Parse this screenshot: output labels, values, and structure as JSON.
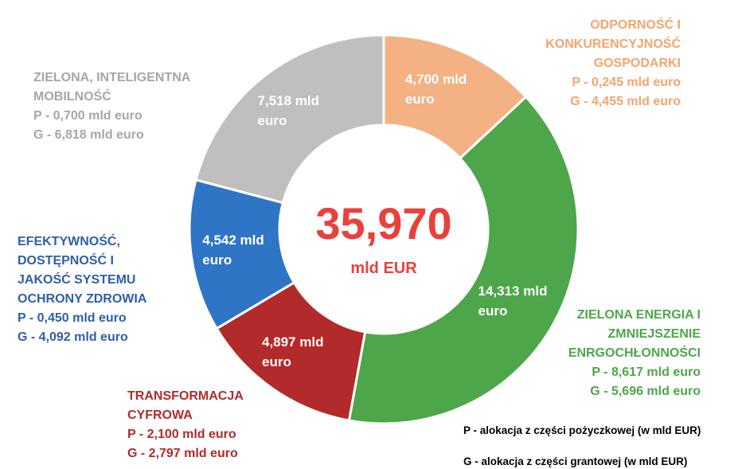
{
  "chart_data": {
    "type": "donut",
    "categories": [
      "ODPORNOŚĆ I KONKURENCYJNOŚĆ GOSPODARKI",
      "ZIELONA ENERGIA I ZMNIEJSZENIE ENRGOCHŁONNOŚCI",
      "TRANSFORMACJA CYFROWA",
      "EFEKTYWNOŚĆ, DOSTĘPNOŚĆ I JAKOŚĆ SYSTEMU OCHRONY ZDROWIA",
      "ZIELONA, INTELIGENTNA MOBILNOŚĆ"
    ],
    "values": [
      4.7,
      14.313,
      4.897,
      4.542,
      7.518
    ],
    "value_labels": [
      "4,700 mld euro",
      "14,313 mld euro",
      "4,897 mld euro",
      "4,542 mld euro",
      "7,518 mld euro"
    ],
    "colors": [
      "#f4b183",
      "#4ea64a",
      "#b22a2a",
      "#2e75c6",
      "#bfbfbf"
    ],
    "text_colors": [
      "#f4a46c",
      "#4ea64a",
      "#b22a2a",
      "#2e5fa6",
      "#a6a6a6"
    ],
    "details": [
      [
        "P - 0,245 mld euro",
        "G - 4,455 mld euro"
      ],
      [
        "P - 8,617 mld euro",
        "G - 5,696 mld euro"
      ],
      [
        "P - 2,100 mld euro",
        "G - 2,797 mld euro"
      ],
      [
        "P - 0,450 mld euro",
        "G - 4,092 mld euro"
      ],
      [
        "P - 0,700 mld euro",
        "G - 6,818 mld euro"
      ]
    ],
    "center_value": "35,970",
    "center_unit": "mld EUR",
    "notes": [
      "P -  alokacja z części pożyczkowej (w mld EUR)",
      "G - alokacja z części grantowej (w mld EUR)"
    ]
  }
}
